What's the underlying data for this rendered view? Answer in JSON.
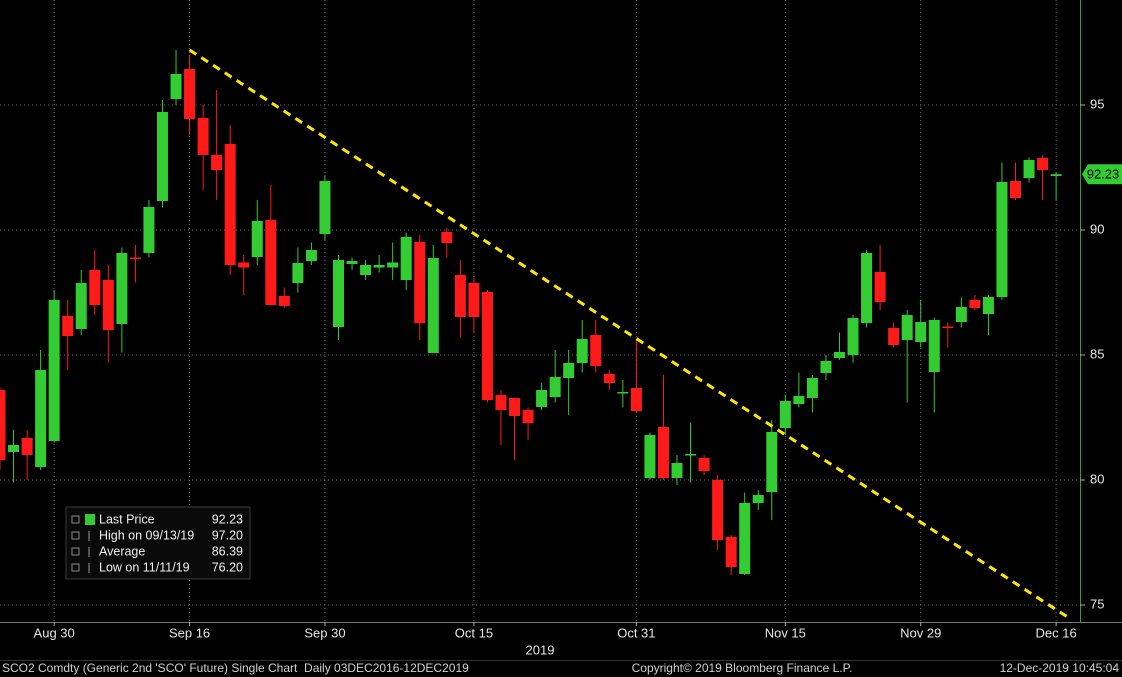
{
  "chart_data": {
    "type": "candlestick",
    "categories": [
      null,
      null,
      null,
      null,
      "Aug 30",
      null,
      null,
      null,
      null,
      null,
      null,
      null,
      null,
      null,
      "Sep 16",
      null,
      null,
      null,
      null,
      null,
      null,
      null,
      null,
      null,
      "Sep 30",
      null,
      null,
      null,
      null,
      null,
      null,
      null,
      null,
      null,
      null,
      "Oct 15",
      null,
      null,
      null,
      null,
      null,
      null,
      null,
      null,
      null,
      null,
      null,
      "Oct 31",
      null,
      null,
      null,
      null,
      null,
      null,
      null,
      null,
      null,
      null,
      "Nov 15",
      null,
      null,
      null,
      null,
      null,
      null,
      null,
      null,
      null,
      "Nov 29",
      null,
      null,
      null,
      null,
      null,
      null,
      null,
      null,
      null,
      "Dec 16"
    ],
    "open": [
      83.6,
      81.12,
      81.68,
      80.52,
      81.56,
      86.56,
      86.04,
      88.4,
      88.0,
      86.24,
      88.9,
      89.08,
      91.16,
      95.24,
      96.44,
      94.48,
      93.0,
      93.44,
      88.7,
      88.92,
      90.4,
      87.36,
      87.88,
      88.76,
      89.84,
      86.12,
      88.64,
      88.2,
      88.5,
      88.5,
      88.0,
      89.52,
      85.08,
      89.92,
      88.2,
      87.88,
      87.52,
      83.4,
      83.28,
      82.8,
      82.92,
      83.32,
      84.08,
      84.68,
      85.8,
      84.24,
      83.5,
      83.68,
      80.08,
      82.12,
      80.08,
      81.0,
      80.88,
      80.0,
      77.72,
      76.24,
      79.08,
      79.52,
      82.08,
      83.04,
      83.28,
      84.28,
      84.88,
      85.0,
      86.28,
      88.32,
      86.08,
      85.6,
      85.52,
      84.32,
      86.14,
      86.32,
      87.2,
      86.64,
      87.32,
      91.96,
      92.08,
      92.88,
      92.16
    ],
    "high": [
      83.7,
      82.0,
      82.0,
      85.2,
      87.6,
      87.2,
      88.4,
      89.2,
      88.6,
      89.3,
      89.4,
      91.2,
      95.2,
      97.2,
      97.0,
      95.0,
      95.6,
      94.2,
      89.0,
      91.2,
      91.8,
      87.7,
      89.3,
      89.5,
      92.2,
      89.0,
      88.9,
      88.8,
      89.0,
      89.5,
      89.9,
      89.8,
      89.4,
      90.1,
      88.8,
      88.1,
      87.6,
      83.6,
      83.3,
      82.9,
      83.9,
      85.2,
      85.2,
      86.4,
      86.4,
      84.4,
      84.0,
      85.6,
      81.9,
      84.2,
      81.0,
      82.3,
      81.0,
      80.2,
      77.8,
      79.5,
      79.6,
      82.4,
      83.4,
      84.3,
      84.2,
      85.0,
      85.9,
      86.6,
      89.2,
      89.4,
      86.3,
      86.8,
      87.2,
      86.5,
      86.3,
      87.3,
      87.4,
      87.4,
      92.7,
      92.7,
      92.9,
      93.0,
      92.3
    ],
    "low": [
      80.4,
      79.9,
      80.0,
      80.4,
      81.5,
      84.4,
      85.8,
      86.6,
      84.7,
      85.1,
      87.9,
      88.9,
      90.9,
      95.0,
      93.8,
      91.6,
      91.2,
      88.2,
      87.4,
      88.6,
      87.0,
      86.9,
      87.5,
      88.6,
      89.6,
      85.6,
      88.4,
      88.0,
      88.3,
      88.0,
      87.6,
      85.6,
      85.1,
      88.9,
      85.7,
      85.9,
      83.1,
      81.4,
      80.8,
      81.6,
      82.8,
      83.1,
      82.6,
      84.3,
      84.3,
      83.6,
      82.9,
      82.7,
      80.0,
      80.0,
      79.8,
      79.9,
      80.2,
      77.2,
      76.2,
      76.2,
      78.8,
      78.4,
      81.8,
      82.9,
      82.7,
      84.0,
      84.8,
      84.7,
      86.1,
      86.8,
      85.3,
      83.1,
      85.3,
      82.7,
      85.3,
      86.1,
      86.8,
      85.8,
      87.2,
      91.2,
      91.9,
      91.2,
      91.2
    ],
    "close": [
      80.8,
      81.4,
      81.0,
      84.4,
      87.2,
      85.76,
      87.88,
      87.0,
      86.0,
      89.08,
      88.88,
      90.92,
      94.72,
      96.24,
      94.44,
      93.0,
      92.4,
      88.6,
      88.5,
      90.36,
      87.0,
      86.96,
      88.68,
      89.2,
      91.96,
      88.8,
      88.76,
      88.6,
      88.6,
      88.7,
      89.72,
      86.28,
      88.88,
      89.48,
      86.52,
      86.52,
      83.2,
      82.8,
      82.56,
      82.28,
      83.6,
      84.12,
      84.68,
      85.64,
      84.56,
      83.88,
      83.52,
      82.76,
      81.8,
      80.08,
      80.68,
      81.04,
      80.36,
      77.6,
      76.52,
      79.08,
      79.4,
      81.92,
      83.16,
      83.36,
      84.08,
      84.76,
      85.12,
      86.48,
      89.08,
      87.12,
      85.4,
      86.6,
      86.32,
      86.4,
      86.1,
      86.92,
      86.88,
      87.32,
      91.92,
      91.28,
      92.8,
      92.4,
      92.23
    ],
    "up_color": "#33cc33",
    "down_color": "#ff1a1a",
    "ylim": [
      74.32,
      99.2
    ],
    "yticks": [
      75,
      80,
      85,
      90,
      95
    ],
    "grid": true,
    "xlabel": "2019",
    "last_price": 92.23,
    "trendline": {
      "x": [
        14,
        78.9
      ],
      "y": [
        97.2,
        74.5
      ],
      "color": "#ffe600"
    },
    "legend": {
      "items": [
        {
          "name": "Last Price",
          "value": 92.23
        },
        {
          "name": "High on 09/13/19",
          "value": 97.2,
          "value_label": "97.20"
        },
        {
          "name": "Average",
          "value": 86.39
        },
        {
          "name": "Low on 11/11/19",
          "value": 76.2,
          "value_label": "76.20"
        }
      ]
    }
  },
  "footer": {
    "left": "SCO2 Comdty (Generic 2nd 'SCO' Future) Single Chart  Daily 03DEC2016-12DEC2019",
    "center": "Copyright© 2019 Bloomberg Finance L.P.",
    "right": "12-Dec-2019 10:45:04"
  }
}
